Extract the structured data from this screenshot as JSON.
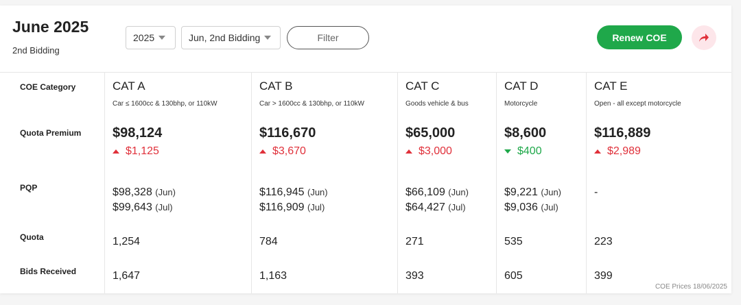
{
  "header": {
    "title": "June 2025",
    "subtitle": "2nd Bidding",
    "year_select": "2025",
    "bidding_select": "Jun, 2nd Bidding",
    "filter_label": "Filter",
    "renew_label": "Renew COE",
    "share_icon": "share-arrow-icon"
  },
  "row_labels": {
    "category": "COE Category",
    "premium": "Quota Premium",
    "pqp": "PQP",
    "quota": "Quota",
    "bids": "Bids Received"
  },
  "categories": [
    {
      "name": "CAT A",
      "desc": "Car ≤ 1600cc & 130bhp, or 110kW",
      "premium": "$98,124",
      "change": "$1,125",
      "direction": "up",
      "pqp1": "$98,328",
      "pqp1_month": "(Jun)",
      "pqp2": "$99,643",
      "pqp2_month": "(Jul)",
      "quota": "1,254",
      "bids": "1,647"
    },
    {
      "name": "CAT B",
      "desc": "Car > 1600cc & 130bhp, or 110kW",
      "premium": "$116,670",
      "change": "$3,670",
      "direction": "up",
      "pqp1": "$116,945",
      "pqp1_month": "(Jun)",
      "pqp2": "$116,909",
      "pqp2_month": "(Jul)",
      "quota": "784",
      "bids": "1,163"
    },
    {
      "name": "CAT C",
      "desc": "Goods vehicle & bus",
      "premium": "$65,000",
      "change": "$3,000",
      "direction": "up",
      "pqp1": "$66,109",
      "pqp1_month": "(Jun)",
      "pqp2": "$64,427",
      "pqp2_month": "(Jul)",
      "quota": "271",
      "bids": "393"
    },
    {
      "name": "CAT D",
      "desc": "Motorcycle",
      "premium": "$8,600",
      "change": "$400",
      "direction": "down",
      "pqp1": "$9,221",
      "pqp1_month": "(Jun)",
      "pqp2": "$9,036",
      "pqp2_month": "(Jul)",
      "quota": "535",
      "bids": "605"
    },
    {
      "name": "CAT E",
      "desc": "Open - all except motorcycle",
      "premium": "$116,889",
      "change": "$2,989",
      "direction": "up",
      "pqp1": "-",
      "pqp1_month": "",
      "pqp2": "",
      "pqp2_month": "",
      "quota": "223",
      "bids": "399"
    }
  ],
  "footnote": "COE Prices 18/06/2025",
  "colors": {
    "accent_green": "#1fa84a",
    "up_red": "#e0303a",
    "share_bg": "#fde6ea"
  }
}
